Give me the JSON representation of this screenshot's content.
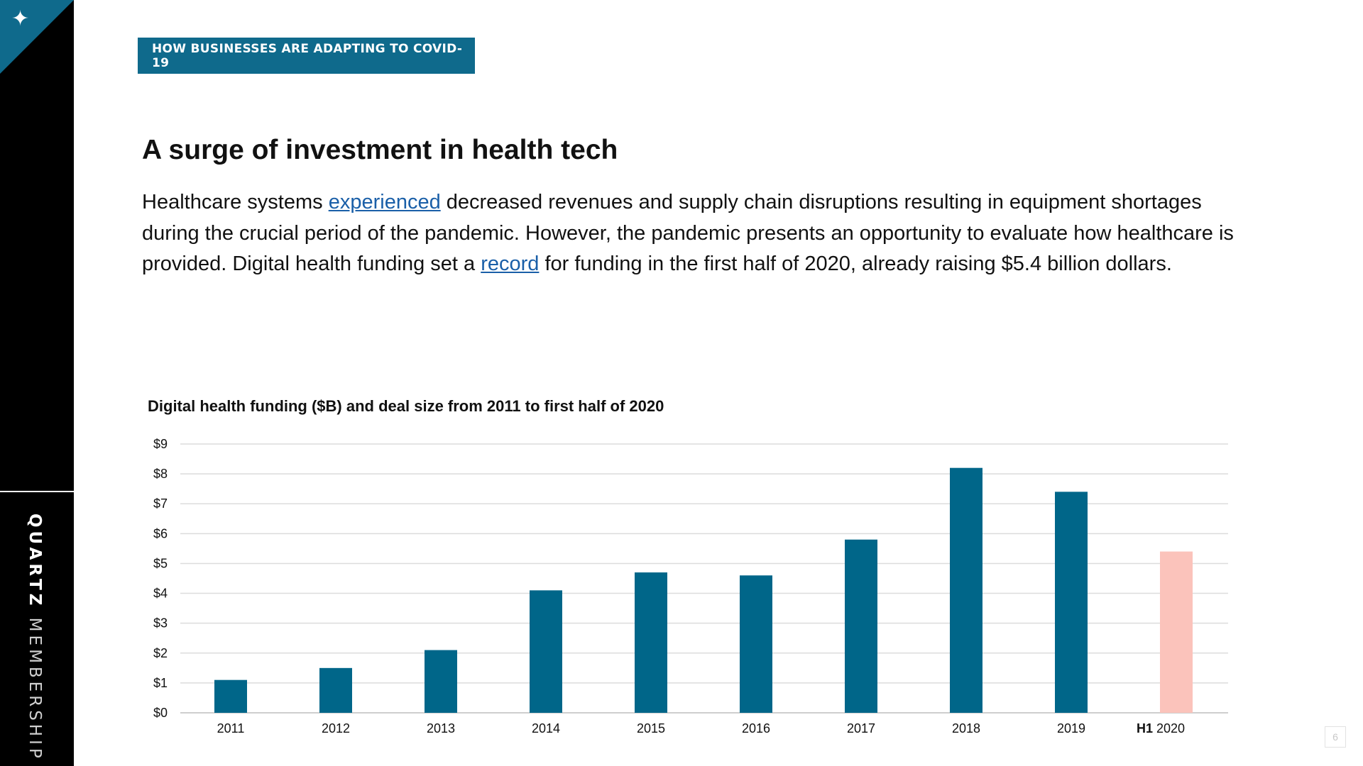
{
  "sidebar": {
    "brand_bold": "QUARTZ",
    "brand_light": " MEMBERSHIP"
  },
  "header": {
    "badge": "HOW BUSINESSES ARE ADAPTING TO COVID-19"
  },
  "title": "A surge of investment in health tech",
  "body": {
    "part1": "Healthcare systems ",
    "link1": "experienced",
    "part2": " decreased revenues and supply chain disruptions resulting in equipment shortages during the crucial period of the pandemic. However, the pandemic presents an opportunity to evaluate how healthcare is provided. Digital health funding set a ",
    "link2": "record",
    "part3": " for funding in the first half of 2020, already raising $5.4 billion dollars."
  },
  "page_number": "6",
  "colors": {
    "accent": "#0f6a8c",
    "bar": "#006689",
    "highlight": "#fbc3bb"
  },
  "chart_data": {
    "type": "bar",
    "title": "Digital health funding ($B)  and deal size from 2011 to first half of 2020",
    "categories": [
      "2011",
      "2012",
      "2013",
      "2014",
      "2015",
      "2016",
      "2017",
      "2018",
      "2019",
      "2020"
    ],
    "category_prefix": [
      "",
      "",
      "",
      "",
      "",
      "",
      "",
      "",
      "",
      "H1"
    ],
    "values": [
      1.1,
      1.5,
      2.1,
      4.1,
      4.7,
      4.6,
      5.8,
      8.2,
      7.4,
      5.4
    ],
    "highlight_index": 9,
    "yticks": [
      "$0",
      "$1",
      "$2",
      "$3",
      "$4",
      "$5",
      "$6",
      "$7",
      "$8",
      "$9"
    ],
    "ylim": [
      0,
      9
    ],
    "grid": true,
    "xlabel": "",
    "ylabel": ""
  }
}
